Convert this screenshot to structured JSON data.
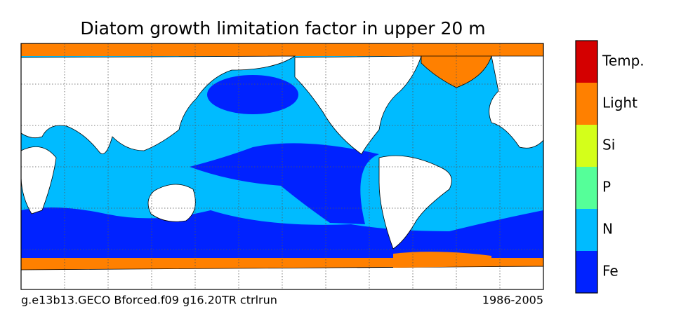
{
  "title": "Diatom growth limitation factor in upper 20 m",
  "colorbar": [
    {
      "label": "Temp.",
      "color": "#d40000"
    },
    {
      "label": "Light",
      "color": "#ff8000"
    },
    {
      "label": "Si",
      "color": "#d4ff1a"
    },
    {
      "label": "P",
      "color": "#55ff99"
    },
    {
      "label": "N",
      "color": "#00bbff"
    },
    {
      "label": "Fe",
      "color": "#0022ff"
    }
  ],
  "footer": {
    "left": "g.e13b13.GECO Bforced.f09 g16.20TR ctrlrun",
    "right": "1986-2005"
  }
}
